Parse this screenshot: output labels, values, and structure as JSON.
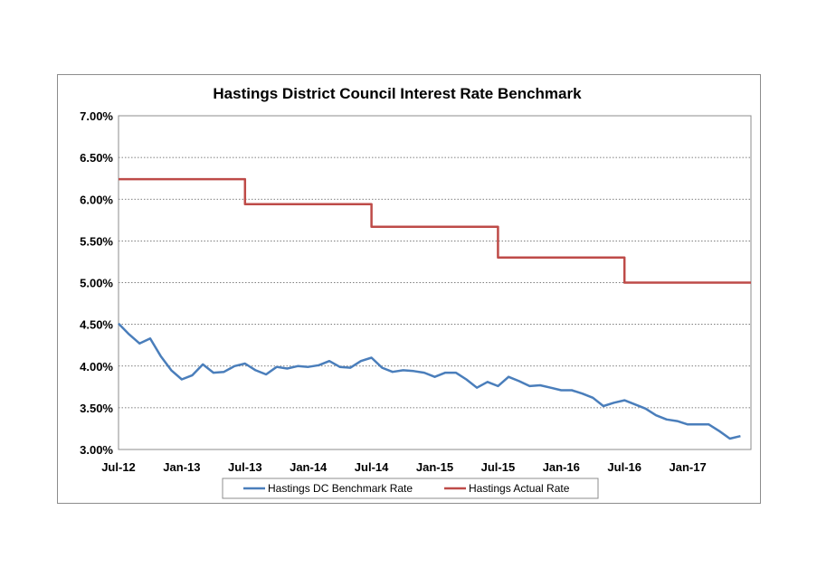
{
  "chart_data": {
    "type": "line",
    "title": "Hastings District Council Interest Rate Benchmark",
    "xlabel": "",
    "ylabel": "",
    "ylim": [
      3.0,
      7.0
    ],
    "yticks": [
      "3.00%",
      "3.50%",
      "4.00%",
      "4.50%",
      "5.00%",
      "5.50%",
      "6.00%",
      "6.50%",
      "7.00%"
    ],
    "xticks": [
      "Jul-12",
      "Jan-13",
      "Jul-13",
      "Jan-14",
      "Jul-14",
      "Jan-15",
      "Jul-15",
      "Jan-16",
      "Jul-16",
      "Jan-17"
    ],
    "grid": true,
    "legend_position": "bottom",
    "series": [
      {
        "name": "Hastings DC Benchmark Rate",
        "color": "#4a7ebb",
        "step": false,
        "values": [
          4.51,
          4.38,
          4.27,
          4.33,
          4.12,
          3.95,
          3.84,
          3.89,
          4.02,
          3.92,
          3.93,
          4.0,
          4.03,
          3.95,
          3.9,
          3.99,
          3.97,
          4.0,
          3.99,
          4.01,
          4.06,
          3.99,
          3.98,
          4.06,
          4.1,
          3.98,
          3.93,
          3.95,
          3.94,
          3.92,
          3.87,
          3.92,
          3.92,
          3.84,
          3.74,
          3.81,
          3.76,
          3.87,
          3.82,
          3.76,
          3.77,
          3.74,
          3.71,
          3.71,
          3.67,
          3.62,
          3.52,
          3.56,
          3.59,
          3.54,
          3.49,
          3.41,
          3.36,
          3.34,
          3.3,
          3.3,
          3.3,
          3.22,
          3.13,
          3.16
        ]
      },
      {
        "name": "Hastings Actual Rate",
        "color": "#be4b48",
        "step": true,
        "values": [
          6.24,
          6.24,
          6.24,
          6.24,
          6.24,
          6.24,
          6.24,
          6.24,
          6.24,
          6.24,
          6.24,
          6.24,
          5.94,
          5.94,
          5.94,
          5.94,
          5.94,
          5.94,
          5.94,
          5.94,
          5.94,
          5.94,
          5.94,
          5.94,
          5.67,
          5.67,
          5.67,
          5.67,
          5.67,
          5.67,
          5.67,
          5.67,
          5.67,
          5.67,
          5.67,
          5.67,
          5.3,
          5.3,
          5.3,
          5.3,
          5.3,
          5.3,
          5.3,
          5.3,
          5.3,
          5.3,
          5.3,
          5.3,
          5.0,
          5.0,
          5.0,
          5.0,
          5.0,
          5.0,
          5.0,
          5.0,
          5.0,
          5.0,
          5.0,
          5.0,
          5.0
        ]
      }
    ]
  }
}
